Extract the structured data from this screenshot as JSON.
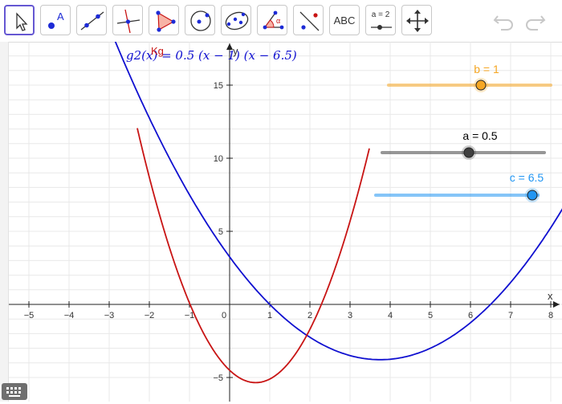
{
  "toolbar": {
    "tools": [
      {
        "name": "move-tool"
      },
      {
        "name": "point-tool",
        "label": "A"
      },
      {
        "name": "line-tool"
      },
      {
        "name": "perpendicular-line-tool"
      },
      {
        "name": "polygon-tool"
      },
      {
        "name": "circle-center-point-tool"
      },
      {
        "name": "conic-tool"
      },
      {
        "name": "angle-tool",
        "label": "α"
      },
      {
        "name": "reflect-tool"
      },
      {
        "name": "text-tool",
        "label": "ABC"
      },
      {
        "name": "slider-tool",
        "label": "a = 2"
      },
      {
        "name": "move-graphics-view-tool"
      }
    ],
    "undo_icon": "undo-icon",
    "redo_icon": "redo-icon"
  },
  "graph": {
    "x_range": [
      -5.6,
      8.2
    ],
    "y_range": [
      -5.9,
      17.3
    ],
    "x_ticks": [
      "−5",
      "−4",
      "−3",
      "−2",
      "−1",
      "0",
      "1",
      "2",
      "3",
      "4",
      "5",
      "6",
      "7",
      "8"
    ],
    "y_ticks": [
      "−5",
      "5",
      "10",
      "15"
    ],
    "x_axis_label": "x",
    "y_axis_label": "y",
    "functions": [
      {
        "label": "g2(x) = 0.5 (x − 1) (x − 6.5)",
        "color": "#1010d0",
        "a": 0.5,
        "r1": 1,
        "r2": 6.5
      },
      {
        "label": "Kg",
        "color": "#c81414"
      }
    ],
    "sliders": [
      {
        "name": "b",
        "label": "b = 1",
        "value": 1,
        "min": -5,
        "max": 5,
        "color": "#f5a623"
      },
      {
        "name": "a",
        "label": "a = 0.5",
        "value": 0.5,
        "min": -5,
        "max": 5,
        "color": "#404040"
      },
      {
        "name": "c",
        "label": "c = 6.5",
        "value": 6.5,
        "min": -5,
        "max": 10,
        "color": "#2196f3"
      }
    ]
  },
  "keyboard_icon": "keyboard-icon"
}
